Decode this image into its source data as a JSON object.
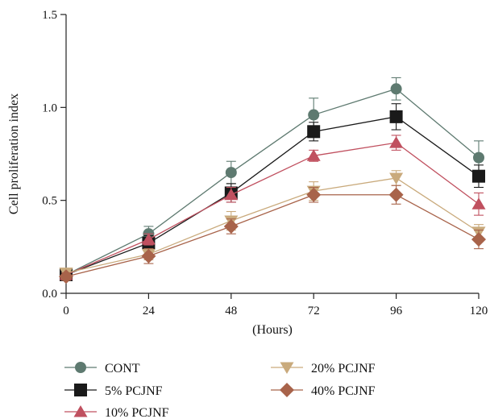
{
  "chart_data": {
    "type": "line",
    "title": "",
    "xlabel": "(Hours)",
    "ylabel": "Cell proliferation index",
    "x": [
      0,
      24,
      48,
      72,
      96,
      120
    ],
    "x_ticks": [
      "0",
      "24",
      "48",
      "72",
      "96",
      "120"
    ],
    "xlim": [
      0,
      120
    ],
    "y_ticks": [
      "0.0",
      "0.5",
      "1.0",
      "1.5"
    ],
    "ylim": [
      0,
      1.5
    ],
    "grid": false,
    "legend_position": "bottom",
    "series": [
      {
        "name": "CONT",
        "marker": "circle",
        "color": "#5e7a70",
        "values": [
          0.1,
          0.32,
          0.65,
          0.96,
          1.1,
          0.73
        ],
        "errors": [
          0.02,
          0.04,
          0.06,
          0.09,
          0.06,
          0.09
        ]
      },
      {
        "name": "5% PCJNF",
        "marker": "square",
        "color": "#1a1a1a",
        "values": [
          0.1,
          0.27,
          0.54,
          0.87,
          0.95,
          0.63
        ],
        "errors": [
          0.02,
          0.04,
          0.05,
          0.05,
          0.07,
          0.06
        ]
      },
      {
        "name": "10% PCJNF",
        "marker": "triangle-up",
        "color": "#c0505f",
        "values": [
          0.1,
          0.29,
          0.53,
          0.74,
          0.81,
          0.48
        ],
        "errors": [
          0.02,
          0.03,
          0.04,
          0.03,
          0.04,
          0.06
        ]
      },
      {
        "name": "20% PCJNF",
        "marker": "triangle-down",
        "color": "#c9aa7c",
        "values": [
          0.11,
          0.21,
          0.39,
          0.55,
          0.62,
          0.33
        ],
        "errors": [
          0.02,
          0.03,
          0.05,
          0.05,
          0.04,
          0.04
        ]
      },
      {
        "name": "40% PCJNF",
        "marker": "diamond",
        "color": "#a8634a",
        "values": [
          0.09,
          0.2,
          0.36,
          0.53,
          0.53,
          0.29
        ],
        "errors": [
          0.02,
          0.04,
          0.04,
          0.04,
          0.05,
          0.05
        ]
      }
    ]
  }
}
